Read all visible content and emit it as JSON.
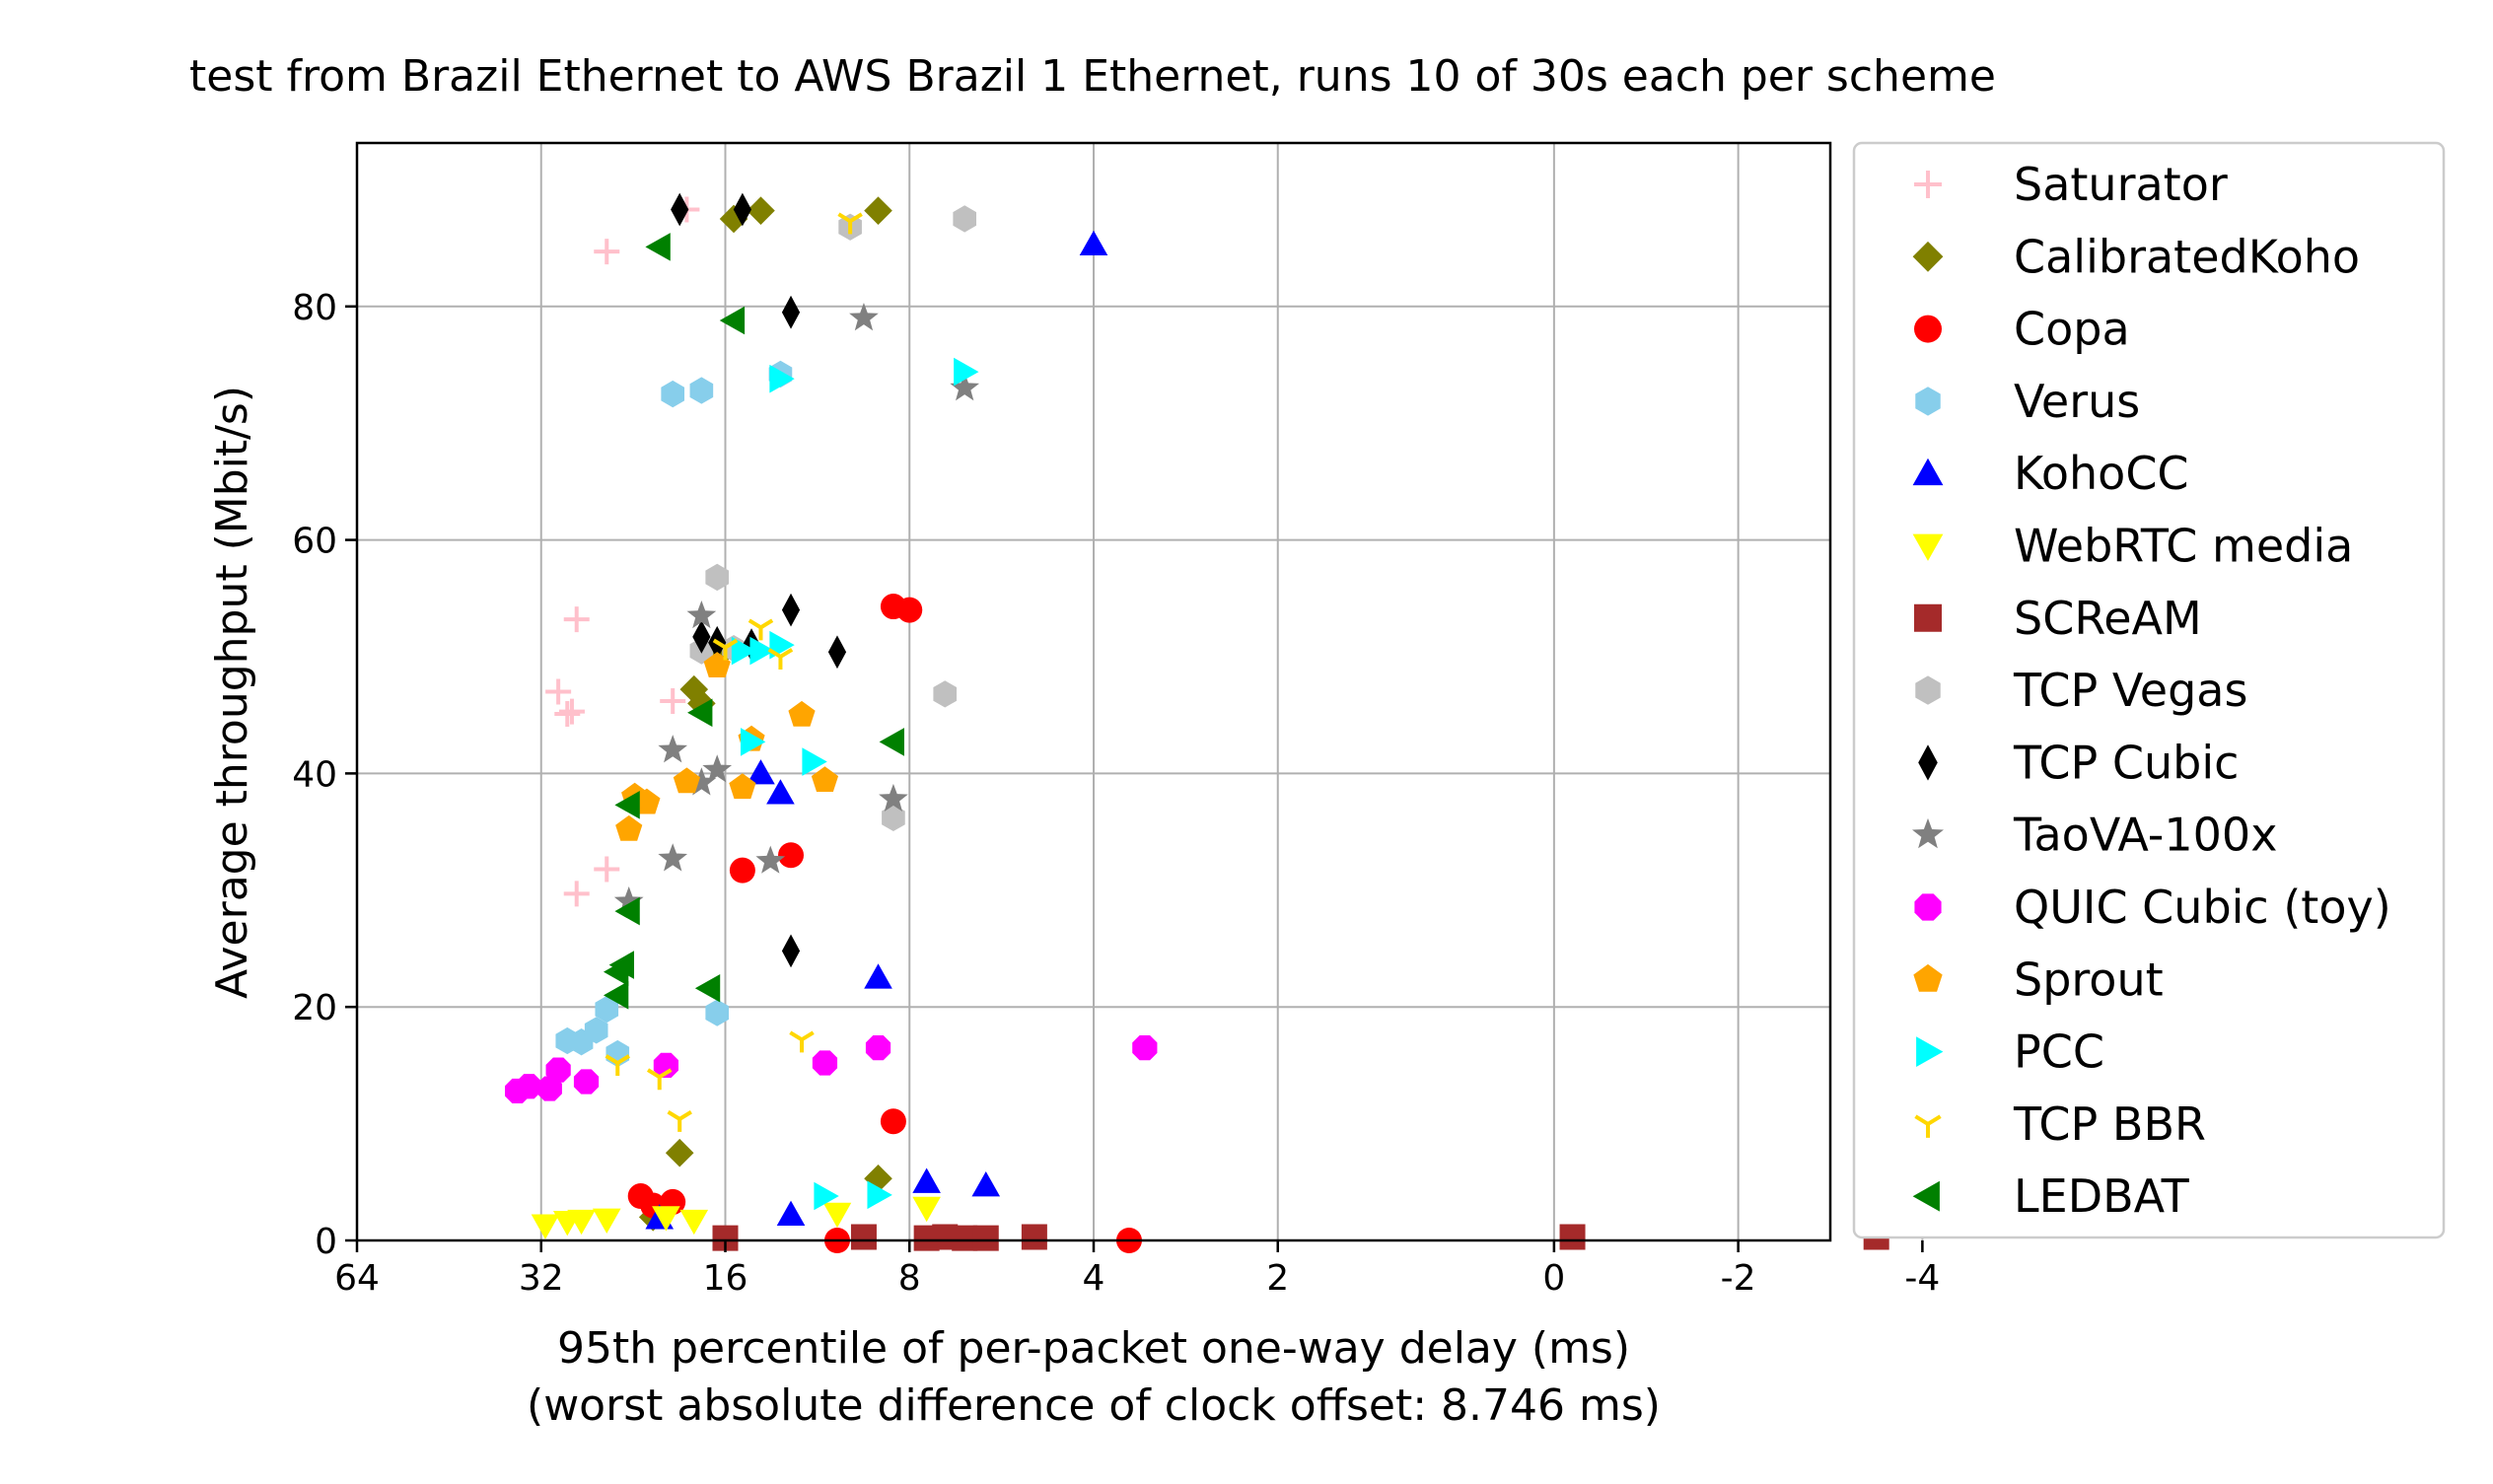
{
  "chart_data": {
    "type": "scatter",
    "title": "test from Brazil Ethernet to AWS Brazil 1 Ethernet, runs 10 of 30s each per scheme",
    "xlabel_line1": "95th percentile of per-packet one-way delay (ms)",
    "xlabel_line2": "(worst absolute difference of clock offset: 8.746 ms)",
    "ylabel": "Average throughput (Mbit/s)",
    "x_ticks": [
      {
        "pos": 64,
        "label": "64"
      },
      {
        "pos": 32,
        "label": "32"
      },
      {
        "pos": 16,
        "label": "16"
      },
      {
        "pos": 8,
        "label": "8"
      },
      {
        "pos": 4,
        "label": "4"
      },
      {
        "pos": 2,
        "label": "2"
      },
      {
        "pos": 0,
        "label": "0"
      },
      {
        "pos": -2,
        "label": "-2"
      },
      {
        "pos": -4,
        "label": "-4"
      }
    ],
    "y_ticks": [
      0,
      20,
      40,
      60,
      80
    ],
    "ylim": [
      0,
      94
    ],
    "grid": true,
    "legend_placement": "outside-right",
    "series": [
      {
        "name": "Saturator",
        "marker": "plus",
        "color": "#ffc0cb",
        "points": [
          [
            25,
            84.7
          ],
          [
            28,
            53.2
          ],
          [
            30,
            47
          ],
          [
            28.5,
            45.3
          ],
          [
            29,
            45.1
          ],
          [
            19.5,
            46.2
          ],
          [
            25,
            31.8
          ],
          [
            28,
            29.7
          ],
          [
            18.5,
            88.3
          ],
          [
            17,
            50
          ]
        ]
      },
      {
        "name": "CalibratedKoho",
        "marker": "diamond",
        "color": "#808000",
        "points": [
          [
            15.5,
            87.5
          ],
          [
            14,
            88.2
          ],
          [
            9,
            88.2
          ],
          [
            18,
            47.2
          ],
          [
            17.5,
            46
          ],
          [
            16.5,
            50
          ],
          [
            19,
            7.5
          ],
          [
            9,
            5.3
          ],
          [
            21,
            2
          ]
        ]
      },
      {
        "name": "Copa",
        "marker": "circle",
        "color": "#ff0000",
        "points": [
          [
            8.5,
            54.3
          ],
          [
            8,
            54
          ],
          [
            12.5,
            33
          ],
          [
            15,
            31.7
          ],
          [
            8.5,
            10.2
          ],
          [
            22,
            3.8
          ],
          [
            21,
            3
          ],
          [
            19.5,
            3.3
          ],
          [
            10.5,
            0
          ],
          [
            3.5,
            0
          ]
        ]
      },
      {
        "name": "Verus",
        "marker": "hexagon",
        "color": "#87ceeb",
        "points": [
          [
            19.5,
            72.5
          ],
          [
            17.5,
            72.8
          ],
          [
            13,
            74.2
          ],
          [
            16.5,
            19.5
          ],
          [
            29,
            17.1
          ],
          [
            27.5,
            17
          ],
          [
            26,
            18
          ],
          [
            25,
            19.8
          ],
          [
            24,
            16
          ]
        ]
      },
      {
        "name": "KohoCC",
        "marker": "triangle-up",
        "color": "#0000ff",
        "points": [
          [
            4,
            85.3
          ],
          [
            14,
            40
          ],
          [
            13,
            38.3
          ],
          [
            9,
            22.5
          ],
          [
            7.5,
            5
          ],
          [
            6,
            4.7
          ],
          [
            12.5,
            2.2
          ],
          [
            20.5,
            1.9
          ]
        ]
      },
      {
        "name": "WebRTC media",
        "marker": "triangle-down",
        "color": "#ffff00",
        "points": [
          [
            31.5,
            1.3
          ],
          [
            29,
            1.6
          ],
          [
            27.5,
            1.7
          ],
          [
            25,
            1.8
          ],
          [
            20,
            2
          ],
          [
            18,
            1.7
          ],
          [
            7.5,
            2.8
          ],
          [
            10.5,
            2.3
          ]
        ]
      },
      {
        "name": "SCReAM",
        "marker": "square",
        "color": "#a52a2a",
        "points": [
          [
            16,
            0.2
          ],
          [
            9.5,
            0.3
          ],
          [
            7.5,
            0.2
          ],
          [
            7,
            0.3
          ],
          [
            6.5,
            0.2
          ],
          [
            6,
            0.2
          ],
          [
            5,
            0.3
          ],
          [
            -0.2,
            0.3
          ],
          [
            -3.5,
            0.3
          ]
        ]
      },
      {
        "name": "TCP Vegas",
        "marker": "hexagon",
        "color": "#c0c0c0",
        "points": [
          [
            6.5,
            87.5
          ],
          [
            10,
            86.8
          ],
          [
            16.5,
            56.8
          ],
          [
            17.5,
            50.5
          ],
          [
            15.5,
            50.7
          ],
          [
            7,
            46.8
          ],
          [
            8.5,
            36.2
          ]
        ]
      },
      {
        "name": "TCP Cubic",
        "marker": "thin-diamond",
        "color": "#000000",
        "points": [
          [
            19,
            88.3
          ],
          [
            15,
            88.3
          ],
          [
            12.5,
            79.5
          ],
          [
            17.5,
            51.7
          ],
          [
            16.5,
            51.2
          ],
          [
            14.5,
            51
          ],
          [
            12.5,
            54
          ],
          [
            10.5,
            50.4
          ],
          [
            12.5,
            24.8
          ]
        ]
      },
      {
        "name": "TaoVA-100x",
        "marker": "star",
        "color": "#808080",
        "points": [
          [
            9.5,
            79
          ],
          [
            6.5,
            73
          ],
          [
            17.5,
            53.5
          ],
          [
            19.5,
            42
          ],
          [
            17.5,
            39.2
          ],
          [
            16.5,
            40.3
          ],
          [
            13.5,
            32.5
          ],
          [
            19.5,
            32.7
          ],
          [
            23,
            29
          ],
          [
            8.5,
            37.8
          ]
        ]
      },
      {
        "name": "QUIC Cubic (toy)",
        "marker": "octagon",
        "color": "#ff00ff",
        "points": [
          [
            35,
            12.8
          ],
          [
            33.5,
            13.2
          ],
          [
            31,
            13
          ],
          [
            30,
            14.6
          ],
          [
            27,
            13.6
          ],
          [
            20,
            15
          ],
          [
            11,
            15.2
          ],
          [
            9,
            16.5
          ],
          [
            3.3,
            16.5
          ]
        ]
      },
      {
        "name": "Sprout",
        "marker": "pentagon",
        "color": "#ffa500",
        "points": [
          [
            16.5,
            49.2
          ],
          [
            12,
            45
          ],
          [
            14.5,
            42.9
          ],
          [
            15,
            38.8
          ],
          [
            18.5,
            39.3
          ],
          [
            21.5,
            37.5
          ],
          [
            22.5,
            38
          ],
          [
            23,
            35.2
          ],
          [
            11,
            39.4
          ]
        ]
      },
      {
        "name": "PCC",
        "marker": "triangle-right",
        "color": "#00ffff",
        "points": [
          [
            6.5,
            74.4
          ],
          [
            13,
            73.8
          ],
          [
            15,
            50.5
          ],
          [
            14,
            50.5
          ],
          [
            13,
            51
          ],
          [
            14.5,
            42.7
          ],
          [
            11.5,
            41
          ],
          [
            11,
            3.8
          ],
          [
            9,
            3.9
          ]
        ]
      },
      {
        "name": "TCP BBR",
        "marker": "tri-down",
        "color": "#ffd700",
        "points": [
          [
            10,
            87.3
          ],
          [
            14,
            52.5
          ],
          [
            16,
            50.8
          ],
          [
            13,
            50
          ],
          [
            12,
            17.2
          ],
          [
            24,
            15.2
          ],
          [
            20.5,
            14
          ],
          [
            19,
            10.4
          ]
        ]
      },
      {
        "name": "LEDBAT",
        "marker": "triangle-left",
        "color": "#008000",
        "points": [
          [
            20.5,
            85.1
          ],
          [
            15.5,
            78.8
          ],
          [
            17.5,
            45.2
          ],
          [
            8.5,
            42.7
          ],
          [
            23,
            37.3
          ],
          [
            23,
            28.2
          ],
          [
            23.5,
            23.6
          ],
          [
            24,
            23
          ],
          [
            24,
            21
          ],
          [
            17,
            21.6
          ]
        ]
      }
    ]
  }
}
